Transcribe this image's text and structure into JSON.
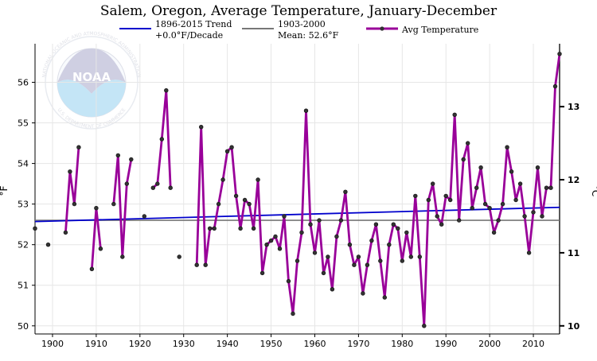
{
  "chart_data": {
    "type": "line",
    "title": "Salem, Oregon, Average Temperature, January-December",
    "ylabel": "°F",
    "y2label": "°C",
    "xlim": [
      1896,
      2016
    ],
    "ylim": [
      49.8,
      56.95
    ],
    "x_ticks": [
      1900,
      1910,
      1920,
      1930,
      1940,
      1950,
      1960,
      1970,
      1980,
      1990,
      2000,
      2010
    ],
    "y_ticks": [
      50,
      51,
      52,
      53,
      54,
      55,
      56
    ],
    "y2_ticks": [
      10,
      11,
      12,
      13
    ],
    "grid": true,
    "legend_position": "top",
    "colors": {
      "avg": "#990099",
      "avg_marker": "#333333",
      "trend": "#0000cc",
      "mean": "#777777",
      "grid": "#e6e6e6"
    },
    "legend": [
      {
        "key": "trend",
        "lines": [
          "1896-2015 Trend",
          "+0.0°F/Decade"
        ]
      },
      {
        "key": "mean",
        "lines": [
          "1903-2000",
          "Mean: 52.6°F"
        ]
      },
      {
        "key": "avg",
        "lines": [
          "Avg Temperature"
        ]
      }
    ],
    "series": [
      {
        "name": "Avg Temperature",
        "points": [
          [
            1896,
            52.4
          ],
          [
            1899,
            52.0
          ],
          [
            1903,
            52.3
          ],
          [
            1904,
            53.8
          ],
          [
            1905,
            53.0
          ],
          [
            1906,
            54.4
          ],
          [
            1909,
            51.4
          ],
          [
            1910,
            52.9
          ],
          [
            1911,
            51.9
          ],
          [
            1914,
            53.0
          ],
          [
            1915,
            54.2
          ],
          [
            1916,
            51.7
          ],
          [
            1917,
            53.5
          ],
          [
            1918,
            54.1
          ],
          [
            1921,
            52.7
          ],
          [
            1923,
            53.4
          ],
          [
            1924,
            53.5
          ],
          [
            1925,
            54.6
          ],
          [
            1926,
            55.8
          ],
          [
            1927,
            53.4
          ],
          [
            1929,
            51.7
          ],
          [
            1933,
            51.5
          ],
          [
            1934,
            54.9
          ],
          [
            1935,
            51.5
          ],
          [
            1936,
            52.4
          ],
          [
            1937,
            52.4
          ],
          [
            1938,
            53.0
          ],
          [
            1939,
            53.6
          ],
          [
            1940,
            54.3
          ],
          [
            1941,
            54.4
          ],
          [
            1942,
            53.2
          ],
          [
            1943,
            52.4
          ],
          [
            1944,
            53.1
          ],
          [
            1945,
            53.0
          ],
          [
            1946,
            52.4
          ],
          [
            1947,
            53.6
          ],
          [
            1948,
            51.3
          ],
          [
            1949,
            52.0
          ],
          [
            1950,
            52.1
          ],
          [
            1951,
            52.2
          ],
          [
            1952,
            51.9
          ],
          [
            1953,
            52.7
          ],
          [
            1954,
            51.1
          ],
          [
            1955,
            50.3
          ],
          [
            1956,
            51.6
          ],
          [
            1957,
            52.3
          ],
          [
            1958,
            55.3
          ],
          [
            1959,
            52.5
          ],
          [
            1960,
            51.8
          ],
          [
            1961,
            52.6
          ],
          [
            1962,
            51.3
          ],
          [
            1963,
            51.7
          ],
          [
            1964,
            50.9
          ],
          [
            1965,
            52.2
          ],
          [
            1966,
            52.6
          ],
          [
            1967,
            53.3
          ],
          [
            1968,
            52.0
          ],
          [
            1969,
            51.5
          ],
          [
            1970,
            51.7
          ],
          [
            1971,
            50.8
          ],
          [
            1972,
            51.5
          ],
          [
            1973,
            52.1
          ],
          [
            1974,
            52.5
          ],
          [
            1975,
            51.6
          ],
          [
            1976,
            50.7
          ],
          [
            1977,
            52.0
          ],
          [
            1978,
            52.5
          ],
          [
            1979,
            52.4
          ],
          [
            1980,
            51.6
          ],
          [
            1981,
            52.3
          ],
          [
            1982,
            51.7
          ],
          [
            1983,
            53.2
          ],
          [
            1984,
            51.7
          ],
          [
            1985,
            50.0
          ],
          [
            1986,
            53.1
          ],
          [
            1987,
            53.5
          ],
          [
            1988,
            52.7
          ],
          [
            1989,
            52.5
          ],
          [
            1990,
            53.2
          ],
          [
            1991,
            53.1
          ],
          [
            1992,
            55.2
          ],
          [
            1993,
            52.6
          ],
          [
            1994,
            54.1
          ],
          [
            1995,
            54.5
          ],
          [
            1996,
            52.9
          ],
          [
            1997,
            53.4
          ],
          [
            1998,
            53.9
          ],
          [
            1999,
            53.0
          ],
          [
            2000,
            52.9
          ],
          [
            2001,
            52.3
          ],
          [
            2002,
            52.6
          ],
          [
            2003,
            53.0
          ],
          [
            2004,
            54.4
          ],
          [
            2005,
            53.8
          ],
          [
            2006,
            53.1
          ],
          [
            2007,
            53.5
          ],
          [
            2008,
            52.7
          ],
          [
            2009,
            51.8
          ],
          [
            2010,
            52.8
          ],
          [
            2011,
            53.9
          ],
          [
            2012,
            52.7
          ],
          [
            2013,
            53.4
          ],
          [
            2014,
            53.4
          ],
          [
            2015,
            55.9
          ],
          [
            2016,
            56.7
          ]
        ]
      },
      {
        "name": "1896-2015 Trend",
        "points": [
          [
            1896,
            52.57
          ],
          [
            2016,
            52.92
          ]
        ]
      },
      {
        "name": "1903-2000 Mean: 52.6°F",
        "points": [
          [
            1896,
            52.6
          ],
          [
            2016,
            52.6
          ]
        ]
      }
    ]
  },
  "logo": {
    "text": "NOAA",
    "ring_top": "NATIONAL OCEANIC AND ATMOSPHERIC ADMINISTRATION",
    "ring_bottom": "U.S. DEPARTMENT OF COMMERCE"
  }
}
